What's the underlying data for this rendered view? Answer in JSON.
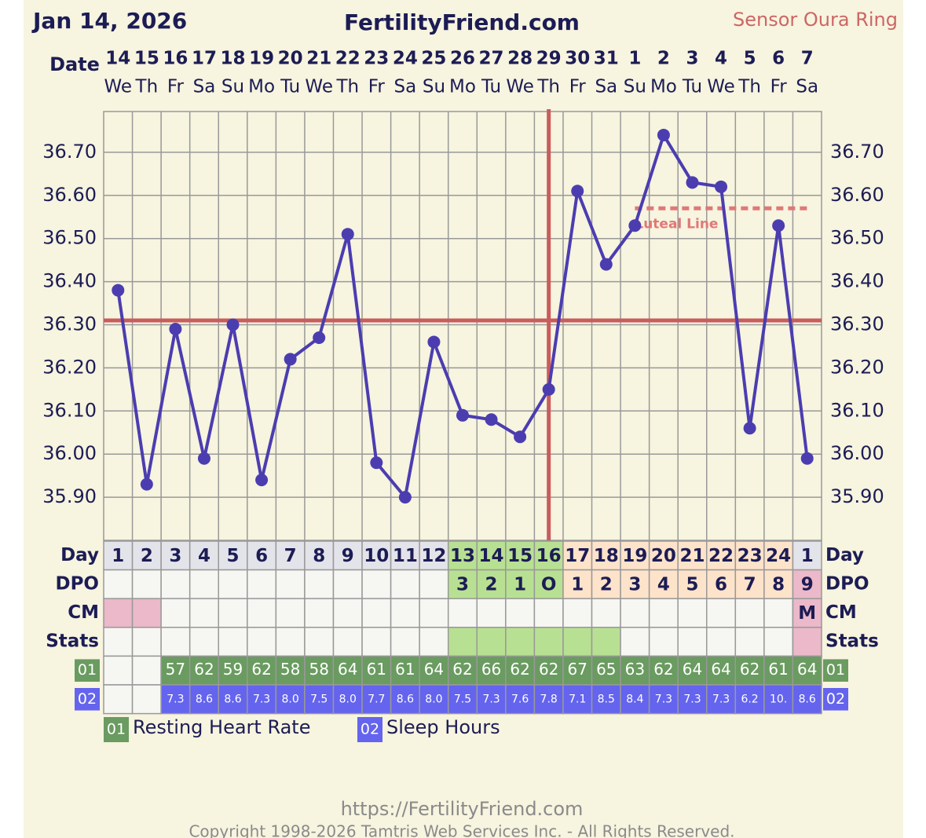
{
  "header": {
    "date": "Jan 14, 2026",
    "site": "FertilityFriend.com",
    "sensor": "Sensor Oura Ring",
    "date_label": "Date"
  },
  "chart_data": {
    "type": "line",
    "categories": [
      "14",
      "15",
      "16",
      "17",
      "18",
      "19",
      "20",
      "21",
      "22",
      "23",
      "24",
      "25",
      "26",
      "27",
      "28",
      "29",
      "30",
      "31",
      "1",
      "2",
      "3",
      "4",
      "5",
      "6",
      "7"
    ],
    "weekdays": [
      "We",
      "Th",
      "Fr",
      "Sa",
      "Su",
      "Mo",
      "Tu",
      "We",
      "Th",
      "Fr",
      "Sa",
      "Su",
      "Mo",
      "Tu",
      "We",
      "Th",
      "Fr",
      "Sa",
      "Su",
      "Mo",
      "Tu",
      "We",
      "Th",
      "Fr",
      "Sa"
    ],
    "values": [
      36.38,
      35.93,
      36.29,
      35.99,
      36.3,
      35.94,
      36.22,
      36.27,
      36.51,
      35.98,
      35.9,
      36.26,
      36.09,
      36.08,
      36.04,
      36.15,
      36.61,
      36.44,
      36.53,
      36.74,
      36.63,
      36.62,
      36.06,
      36.53,
      35.99
    ],
    "color": "#4b3db0",
    "ylim": [
      35.8,
      36.8
    ],
    "yticks": [
      {
        "value": 35.9,
        "label": "35.90"
      },
      {
        "value": 36.0,
        "label": "36.00"
      },
      {
        "value": 36.1,
        "label": "36.10"
      },
      {
        "value": 36.2,
        "label": "36.20"
      },
      {
        "value": 36.3,
        "label": "36.30"
      },
      {
        "value": 36.4,
        "label": "36.40"
      },
      {
        "value": 36.5,
        "label": "36.50"
      },
      {
        "value": 36.6,
        "label": "36.60"
      },
      {
        "value": 36.7,
        "label": "36.70"
      }
    ],
    "grid": true,
    "coverline": {
      "value": 36.31,
      "color": "#c95c5c"
    },
    "luteal_line": {
      "label": "Luteal Line",
      "value": 36.57,
      "start": "1",
      "color": "#e07878"
    }
  },
  "table": {
    "rows": [
      {
        "label": "Day",
        "cells": [
          1,
          2,
          3,
          4,
          5,
          6,
          7,
          8,
          9,
          10,
          11,
          12,
          13,
          14,
          15,
          16,
          17,
          18,
          19,
          20,
          21,
          22,
          23,
          24,
          1
        ],
        "colors": [
          "#e3e3ea",
          "#e3e3ea",
          "#e3e3ea",
          "#e3e3ea",
          "#e3e3ea",
          "#e3e3ea",
          "#e3e3ea",
          "#e3e3ea",
          "#e3e3ea",
          "#e3e3ea",
          "#e3e3ea",
          "#e3e3ea",
          "#b8e092",
          "#b8e092",
          "#b8e092",
          "#b8e092",
          "#fde3ca",
          "#fde3ca",
          "#fde3ca",
          "#fde3ca",
          "#fde3ca",
          "#fde3ca",
          "#fde3ca",
          "#fde3ca",
          "#e3e3ea"
        ]
      },
      {
        "label": "DPO",
        "cells": [
          null,
          null,
          null,
          null,
          null,
          null,
          null,
          null,
          null,
          null,
          null,
          null,
          "3",
          "2",
          "1",
          "O",
          "1",
          "2",
          "3",
          "4",
          "5",
          "6",
          "7",
          "8",
          "9"
        ],
        "colors": [
          "#f6f6f2",
          "#f6f6f2",
          "#f6f6f2",
          "#f6f6f2",
          "#f6f6f2",
          "#f6f6f2",
          "#f6f6f2",
          "#f6f6f2",
          "#f6f6f2",
          "#f6f6f2",
          "#f6f6f2",
          "#f6f6f2",
          "#b8e092",
          "#b8e092",
          "#b8e092",
          "#b8e092",
          "#fde3ca",
          "#fde3ca",
          "#fde3ca",
          "#fde3ca",
          "#fde3ca",
          "#fde3ca",
          "#fde3ca",
          "#fde3ca",
          "#ebb9c9"
        ]
      },
      {
        "label": "CM",
        "cells": [
          null,
          null,
          null,
          null,
          null,
          null,
          null,
          null,
          null,
          null,
          null,
          null,
          null,
          null,
          null,
          null,
          null,
          null,
          null,
          null,
          null,
          null,
          null,
          null,
          "M"
        ],
        "colors": [
          "#ebb9c9",
          "#ebb9c9",
          "#f6f6f2",
          "#f6f6f2",
          "#f6f6f2",
          "#f6f6f2",
          "#f6f6f2",
          "#f6f6f2",
          "#f6f6f2",
          "#f6f6f2",
          "#f6f6f2",
          "#f6f6f2",
          "#f6f6f2",
          "#f6f6f2",
          "#f6f6f2",
          "#f6f6f2",
          "#f6f6f2",
          "#f6f6f2",
          "#f6f6f2",
          "#f6f6f2",
          "#f6f6f2",
          "#f6f6f2",
          "#f6f6f2",
          "#f6f6f2",
          "#ebb9c9"
        ]
      },
      {
        "label": "Stats",
        "cells": [
          null,
          null,
          null,
          null,
          null,
          null,
          null,
          null,
          null,
          null,
          null,
          null,
          null,
          null,
          null,
          null,
          null,
          null,
          null,
          null,
          null,
          null,
          null,
          null,
          null
        ],
        "colors": [
          "#f6f6f2",
          "#f6f6f2",
          "#f6f6f2",
          "#f6f6f2",
          "#f6f6f2",
          "#f6f6f2",
          "#f6f6f2",
          "#f6f6f2",
          "#f6f6f2",
          "#f6f6f2",
          "#f6f6f2",
          "#f6f6f2",
          "#b8e092",
          "#b8e092",
          "#b8e092",
          "#b8e092",
          "#b8e092",
          "#b8e092",
          "#f6f6f2",
          "#f6f6f2",
          "#f6f6f2",
          "#f6f6f2",
          "#f6f6f2",
          "#f6f6f2",
          "#ebb9c9"
        ]
      }
    ],
    "metrics": [
      {
        "badge": "01",
        "name": "Resting Heart Rate",
        "color": "#6a9b60",
        "cells": [
          null,
          null,
          57,
          62,
          59,
          62,
          58,
          58,
          64,
          61,
          61,
          64,
          62,
          66,
          62,
          62,
          67,
          65,
          63,
          62,
          64,
          64,
          62,
          61,
          64
        ]
      },
      {
        "badge": "02",
        "name": "Sleep Hours",
        "color": "#6464ee",
        "cells": [
          null,
          null,
          "7.3",
          "8.6",
          "8.6",
          "7.3",
          "8.0",
          "7.5",
          "8.0",
          "7.7",
          "8.6",
          "8.0",
          "7.5",
          "7.3",
          "7.6",
          "7.8",
          "7.1",
          "8.5",
          "8.4",
          "7.3",
          "7.3",
          "7.3",
          "6.2",
          "10.",
          "8.6"
        ]
      }
    ]
  },
  "footer": {
    "url": "https://FertilityFriend.com",
    "copyright": "Copyright 1998-2026 Tamtris Web Services Inc. - All Rights Reserved."
  }
}
